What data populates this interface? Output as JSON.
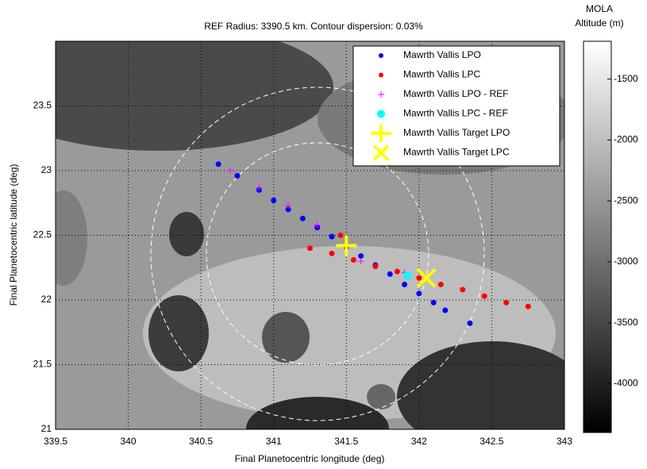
{
  "chart_data": {
    "type": "scatter",
    "title": "REF Radius: 3390.5 km. Contour dispersion: 0.03%",
    "x_label": "Final Planetocentric longitude (deg)",
    "y_label": "Final Planetocentric latitude (deg)",
    "xlim": [
      339.5,
      343
    ],
    "ylim": [
      21,
      24
    ],
    "xticks": [
      339.5,
      340,
      340.5,
      341,
      341.5,
      342,
      342.5,
      343
    ],
    "yticks": [
      21,
      21.5,
      22,
      22.5,
      23,
      23.5
    ],
    "grid": true,
    "legend": "top-right",
    "series": [
      {
        "name": "Mawrth Vallis LPO",
        "color": "#0000ff",
        "marker": "dot",
        "x": [
          340.62,
          340.75,
          340.9,
          341.0,
          341.1,
          341.2,
          341.3,
          341.4,
          341.5,
          341.6,
          341.7,
          341.8,
          341.9,
          342.0,
          342.1,
          342.18,
          342.35
        ],
        "values": [
          23.05,
          22.96,
          22.85,
          22.77,
          22.7,
          22.63,
          22.56,
          22.49,
          22.41,
          22.34,
          22.27,
          22.2,
          22.12,
          22.05,
          21.98,
          21.92,
          21.82
        ]
      },
      {
        "name": "Mawrth Vallis LPC",
        "color": "#ff0000",
        "marker": "dot",
        "x": [
          341.25,
          341.4,
          341.46,
          341.55,
          341.7,
          341.85,
          342.0,
          342.15,
          342.3,
          342.45,
          342.6,
          342.75
        ],
        "values": [
          22.4,
          22.36,
          22.5,
          22.31,
          22.26,
          22.22,
          22.17,
          22.12,
          22.08,
          22.03,
          21.98,
          21.95
        ]
      },
      {
        "name": "Mawrth Vallis LPO - REF",
        "color": "#ff00ff",
        "marker": "plus",
        "x": [
          340.7,
          340.9,
          341.1,
          341.3,
          341.6,
          341.9
        ],
        "values": [
          23.0,
          22.87,
          22.73,
          22.58,
          22.3,
          22.21
        ]
      },
      {
        "name": "Mawrth Vallis LPC - REF",
        "color": "#00ffff",
        "marker": "circle",
        "x": [
          341.92
        ],
        "values": [
          22.19
        ]
      },
      {
        "name": "Mawrth Vallis Target LPO",
        "color": "#ffff00",
        "marker": "bigplus",
        "x": [
          341.5
        ],
        "values": [
          22.42
        ]
      },
      {
        "name": "Mawrth Vallis Target LPC",
        "color": "#ffff00",
        "marker": "x",
        "x": [
          342.05
        ],
        "values": [
          22.17
        ]
      }
    ],
    "colorbar": {
      "label": [
        "MOLA",
        "Altitude (m)"
      ],
      "lim": [
        -4400,
        -1190
      ],
      "ticks": [
        -4000,
        -3500,
        -3000,
        -2500,
        -2000,
        -1500
      ]
    }
  }
}
